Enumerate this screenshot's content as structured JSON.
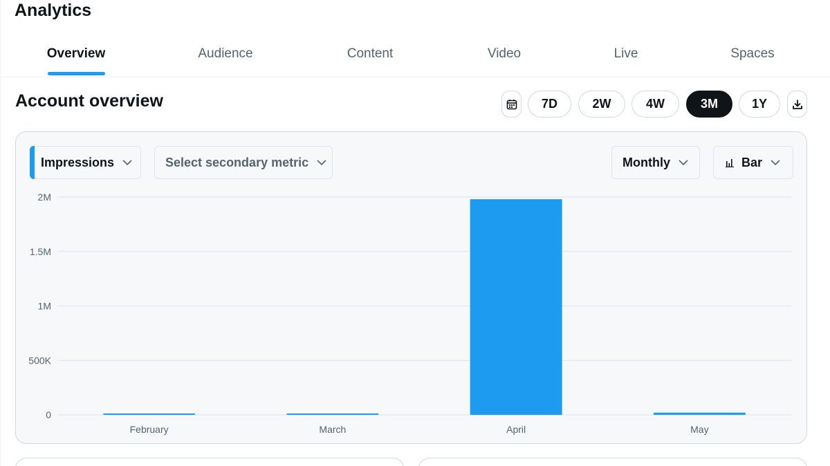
{
  "app": {
    "title": "Analytics"
  },
  "tabs": [
    {
      "label": "Overview",
      "active": true
    },
    {
      "label": "Audience",
      "active": false
    },
    {
      "label": "Content",
      "active": false
    },
    {
      "label": "Video",
      "active": false
    },
    {
      "label": "Live",
      "active": false
    },
    {
      "label": "Spaces",
      "active": false
    }
  ],
  "section": {
    "title": "Account overview"
  },
  "ranges": [
    {
      "label": "7D",
      "active": false
    },
    {
      "label": "2W",
      "active": false
    },
    {
      "label": "4W",
      "active": false
    },
    {
      "label": "3M",
      "active": true
    },
    {
      "label": "1Y",
      "active": false
    }
  ],
  "icons": {
    "calendar": "calendar-icon",
    "download": "download-icon",
    "chevron": "chevron-down-icon",
    "bar_chart": "bar-chart-icon"
  },
  "controls": {
    "primary_metric": "Impressions",
    "secondary_metric": "Select secondary metric",
    "interval": "Monthly",
    "chart_type": "Bar"
  },
  "colors": {
    "accent": "#1d9bf0",
    "active_range_bg": "#0f1419"
  },
  "chart_data": {
    "type": "bar",
    "categories": [
      "February",
      "March",
      "April",
      "May"
    ],
    "values": [
      2000,
      1000,
      1980000,
      20000
    ],
    "ylim": [
      0,
      2000000
    ],
    "yticks": [
      {
        "value": 0,
        "label": "0"
      },
      {
        "value": 500000,
        "label": "500K"
      },
      {
        "value": 1000000,
        "label": "1M"
      },
      {
        "value": 1500000,
        "label": "1.5M"
      },
      {
        "value": 2000000,
        "label": "2M"
      }
    ],
    "grid": true,
    "color": "#1d9bf0"
  }
}
